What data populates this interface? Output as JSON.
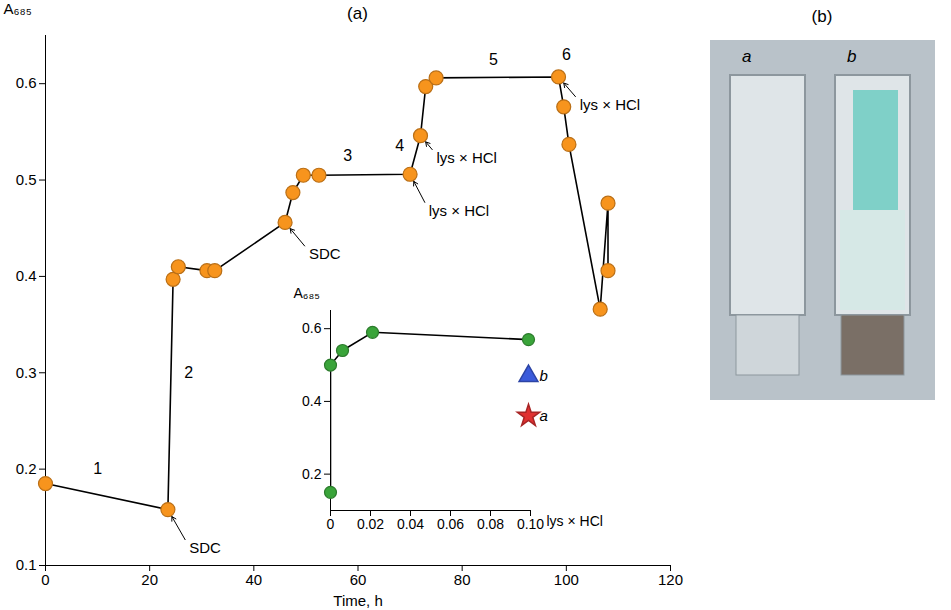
{
  "chart_data": [
    {
      "type": "line",
      "title": "(a)",
      "x_label": "Time, h",
      "y_label": "A₆₈₅",
      "x": [
        0,
        23.5,
        24.5,
        25.5,
        31,
        32.5,
        46,
        47.5,
        49.5,
        52.5,
        70,
        72,
        73,
        75,
        98.5,
        99.5,
        100.5,
        106.5,
        108,
        108
      ],
      "values": [
        0.185,
        0.158,
        0.397,
        0.41,
        0.406,
        0.406,
        0.456,
        0.487,
        0.505,
        0.505,
        0.506,
        0.546,
        0.597,
        0.606,
        0.607,
        0.576,
        0.537,
        0.366,
        0.476,
        0.406
      ],
      "color": "#f7941d",
      "marker": "circle",
      "xlim": [
        0,
        120
      ],
      "xticks": [
        0,
        20,
        40,
        60,
        80,
        100,
        120
      ],
      "ylim": [
        0.1,
        0.65
      ],
      "yticks": [
        0.1,
        0.2,
        0.3,
        0.4,
        0.5,
        0.6
      ],
      "segment_labels": [
        {
          "text": "1",
          "x": 10,
          "y": 0.2
        },
        {
          "text": "2",
          "x": 27.5,
          "y": 0.3
        },
        {
          "text": "3",
          "x": 58,
          "y": 0.525
        },
        {
          "text": "4",
          "x": 68,
          "y": 0.535
        },
        {
          "text": "5",
          "x": 86,
          "y": 0.625
        },
        {
          "text": "6",
          "x": 100,
          "y": 0.63
        }
      ],
      "annotations": [
        {
          "text": "SDC",
          "x": 27,
          "y": 0.125,
          "arrow_to": [
            23.5,
            0.158
          ]
        },
        {
          "text": "SDC",
          "x": 50,
          "y": 0.43,
          "arrow_to": [
            46,
            0.456
          ]
        },
        {
          "text": "lys × HCl",
          "x": 73,
          "y": 0.475,
          "arrow_to": [
            70,
            0.506
          ]
        },
        {
          "text": "lys × HCl",
          "x": 74.5,
          "y": 0.53,
          "arrow_to": [
            72,
            0.546
          ]
        },
        {
          "text": "lys × HCl",
          "x": 102,
          "y": 0.585,
          "arrow_to": [
            98.5,
            0.607
          ]
        }
      ]
    },
    {
      "type": "line",
      "x_label": "lys × HCl",
      "y_label": "A₆₈₅",
      "x": [
        0,
        0,
        0.006,
        0.021,
        0.099
      ],
      "values": [
        0.15,
        0.5,
        0.54,
        0.59,
        0.57
      ],
      "color": "#3aa43a",
      "marker": "circle",
      "xlim": [
        0,
        0.1
      ],
      "xticks": [
        0,
        0.02,
        0.04,
        0.06,
        0.08,
        {
          "value": 0.1,
          "label": "0.10"
        }
      ],
      "ylim": [
        0.1,
        0.65
      ],
      "yticks": [
        0.2,
        0.4,
        0.6
      ],
      "points": [
        {
          "name": "b",
          "x": 0.099,
          "y": 0.47,
          "color": "#3b5bdb",
          "marker": "triangle"
        },
        {
          "name": "a",
          "x": 0.099,
          "y": 0.36,
          "color": "#e03131",
          "marker": "star"
        }
      ]
    }
  ],
  "photo": {
    "title": "(b)",
    "labels": [
      "a",
      "b"
    ]
  }
}
